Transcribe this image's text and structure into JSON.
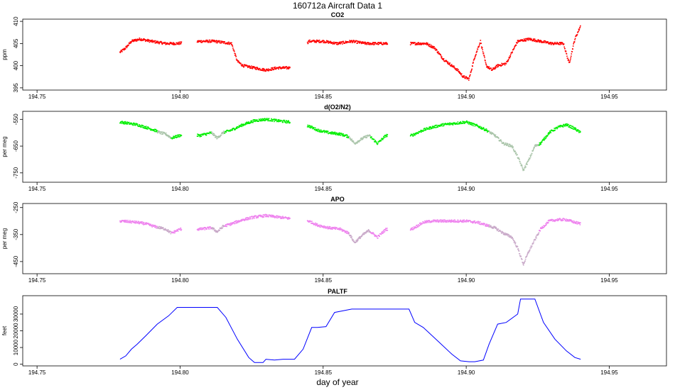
{
  "title": "160712a    Aircraft Data 1",
  "xlabel": "day of year",
  "colors": {
    "co2": "#ff0000",
    "o2n2": "#00ee00",
    "o2n2_low": "#a9c4a9",
    "apo": "#ee82ee",
    "apo_low": "#c8a8c8",
    "paltf": "#0000ff"
  },
  "chart_data": [
    {
      "type": "scatter",
      "title": "CO2",
      "ylabel": "ppm",
      "xlim": [
        194.745,
        194.97
      ],
      "ylim": [
        394.5,
        410.5
      ],
      "xticks": [
        194.75,
        194.8,
        194.85,
        194.9,
        194.95
      ],
      "xtick_labels": [
        "194.75",
        "194.80",
        "194.85",
        "194.90",
        "194.95"
      ],
      "yticks": [
        395,
        400,
        405,
        410
      ],
      "ytick_labels": [
        "395",
        "400",
        "405",
        "410"
      ],
      "y_reversed": false,
      "series": [
        {
          "x": [
            194.779,
            194.781,
            194.783,
            194.786,
            194.79,
            194.795,
            194.799,
            194.807,
            194.812,
            194.818,
            194.82,
            194.822,
            194.826,
            194.83,
            194.834,
            194.838,
            194.845,
            194.85,
            194.855,
            194.86,
            194.865,
            194.87,
            194.875,
            194.881,
            194.886,
            194.889,
            194.892,
            194.895,
            194.897,
            194.899,
            194.901,
            194.903,
            194.905,
            194.907,
            194.909,
            194.911,
            194.914,
            194.918,
            194.922,
            194.926,
            194.93,
            194.934,
            194.936,
            194.938,
            194.94
          ],
          "y": [
            403.0,
            404.0,
            405.5,
            406.0,
            405.5,
            405.0,
            405.0,
            405.5,
            405.5,
            405.0,
            401.0,
            400.0,
            399.5,
            399.0,
            399.5,
            399.5,
            405.5,
            405.5,
            405.0,
            405.5,
            405.0,
            405.0,
            405.0,
            405.0,
            405.0,
            404.0,
            401.5,
            400.0,
            399.0,
            397.5,
            397.0,
            402.0,
            405.5,
            400.0,
            399.0,
            400.0,
            400.5,
            405.5,
            406.0,
            405.5,
            405.0,
            405.0,
            400.5,
            406.0,
            409.0
          ]
        }
      ]
    },
    {
      "type": "scatter",
      "title": "d(O2/N2)",
      "ylabel": "per meg",
      "xlim": [
        194.745,
        194.97
      ],
      "ylim": [
        -785,
        -520
      ],
      "xticks": [
        194.75,
        194.8,
        194.85,
        194.9,
        194.95
      ],
      "xtick_labels": [
        "194.75",
        "194.80",
        "194.85",
        "194.90",
        "194.95"
      ],
      "yticks": [
        -550,
        -650,
        -750
      ],
      "ytick_labels": [
        "-550",
        "-650",
        "-750"
      ],
      "series": [
        {
          "x": [
            194.779,
            194.782,
            194.785,
            194.788,
            194.791,
            194.793,
            194.795,
            194.797,
            194.8,
            194.807,
            194.811,
            194.813,
            194.815,
            194.818,
            194.822,
            194.826,
            194.83,
            194.834,
            194.838,
            194.845,
            194.848,
            194.852,
            194.856,
            194.859,
            194.861,
            194.864,
            194.866,
            194.869,
            194.872,
            194.881,
            194.885,
            194.888,
            194.892,
            194.896,
            194.9,
            194.904,
            194.907,
            194.91,
            194.913,
            194.916,
            194.918,
            194.92,
            194.922,
            194.924,
            194.926,
            194.929,
            194.932,
            194.935,
            194.938,
            194.94
          ],
          "y": [
            -560,
            -565,
            -570,
            -580,
            -590,
            -600,
            -605,
            -620,
            -610,
            -610,
            -600,
            -620,
            -600,
            -590,
            -570,
            -555,
            -550,
            -555,
            -560,
            -575,
            -590,
            -600,
            -605,
            -615,
            -640,
            -620,
            -610,
            -640,
            -610,
            -610,
            -590,
            -580,
            -570,
            -565,
            -560,
            -575,
            -590,
            -610,
            -640,
            -650,
            -690,
            -740,
            -700,
            -650,
            -640,
            -600,
            -580,
            -570,
            -585,
            -600
          ]
        }
      ]
    },
    {
      "type": "scatter",
      "title": "APO",
      "ylabel": "per meg",
      "xlim": [
        194.745,
        194.97
      ],
      "ylim": [
        -495,
        -235
      ],
      "xticks": [
        194.75,
        194.8,
        194.85,
        194.9,
        194.95
      ],
      "xtick_labels": [
        "194.75",
        "194.80",
        "194.85",
        "194.90",
        "194.95"
      ],
      "yticks": [
        -250,
        -350,
        -450
      ],
      "ytick_labels": [
        "-250",
        "-350",
        "-450"
      ],
      "series": [
        {
          "x": [
            194.779,
            194.782,
            194.785,
            194.788,
            194.791,
            194.793,
            194.795,
            194.797,
            194.8,
            194.807,
            194.811,
            194.813,
            194.815,
            194.818,
            194.822,
            194.826,
            194.83,
            194.834,
            194.838,
            194.845,
            194.848,
            194.852,
            194.856,
            194.859,
            194.861,
            194.864,
            194.866,
            194.869,
            194.872,
            194.881,
            194.885,
            194.888,
            194.892,
            194.896,
            194.9,
            194.904,
            194.907,
            194.91,
            194.913,
            194.916,
            194.918,
            194.92,
            194.922,
            194.924,
            194.926,
            194.929,
            194.932,
            194.935,
            194.938,
            194.94
          ],
          "y": [
            -300,
            -302,
            -305,
            -310,
            -320,
            -325,
            -330,
            -345,
            -330,
            -330,
            -325,
            -340,
            -320,
            -310,
            -295,
            -285,
            -280,
            -285,
            -290,
            -300,
            -315,
            -325,
            -330,
            -345,
            -380,
            -350,
            -335,
            -360,
            -330,
            -330,
            -305,
            -300,
            -300,
            -300,
            -300,
            -305,
            -315,
            -325,
            -345,
            -360,
            -400,
            -460,
            -410,
            -370,
            -330,
            -300,
            -295,
            -295,
            -305,
            -310
          ]
        }
      ]
    },
    {
      "type": "line",
      "title": "PALTF",
      "ylabel": "feet",
      "xlim": [
        194.745,
        194.97
      ],
      "ylim": [
        -1000,
        41000
      ],
      "xticks": [
        194.75,
        194.8,
        194.85,
        194.9,
        194.95
      ],
      "xtick_labels": [
        "194.75",
        "194.80",
        "194.85",
        "194.90",
        "194.95"
      ],
      "yticks": [
        0,
        10000,
        20000,
        30000
      ],
      "ytick_labels": [
        "0",
        "10000",
        "20000",
        "30000"
      ],
      "series": [
        {
          "x": [
            194.779,
            194.781,
            194.783,
            194.785,
            194.788,
            194.792,
            194.796,
            194.799,
            194.803,
            194.808,
            194.813,
            194.816,
            194.82,
            194.824,
            194.826,
            194.829,
            194.83,
            194.833,
            194.836,
            194.84,
            194.843,
            194.846,
            194.848,
            194.851,
            194.854,
            194.86,
            194.866,
            194.872,
            194.876,
            194.88,
            194.882,
            194.885,
            194.89,
            194.895,
            194.898,
            194.901,
            194.903,
            194.906,
            194.908,
            194.911,
            194.914,
            194.918,
            194.919,
            194.924,
            194.927,
            194.931,
            194.935,
            194.938,
            194.94
          ],
          "y": [
            3000,
            5000,
            9000,
            12000,
            17000,
            24000,
            29000,
            34000,
            34000,
            34000,
            34000,
            28000,
            15000,
            4000,
            1000,
            1000,
            3000,
            2500,
            3000,
            3000,
            9000,
            22000,
            22000,
            22500,
            31000,
            33000,
            33000,
            33000,
            33000,
            33000,
            25000,
            22000,
            14000,
            6000,
            2000,
            1500,
            1500,
            2500,
            12000,
            24000,
            25000,
            30000,
            39000,
            39000,
            25000,
            15000,
            8000,
            4000,
            3000
          ]
        }
      ]
    }
  ]
}
